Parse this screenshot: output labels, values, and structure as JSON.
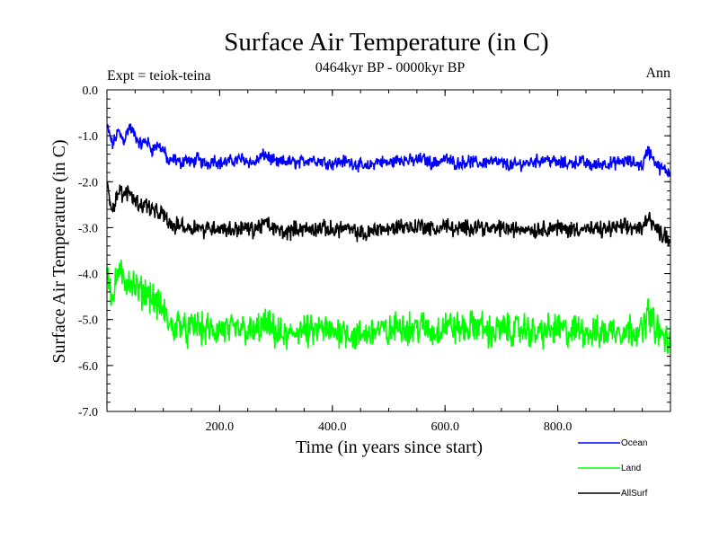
{
  "chart_data": {
    "type": "line",
    "title": "Surface Air Temperature (in C)",
    "subtitle": "0464kyr BP - 0000kyr BP",
    "left_label": "Expt = teiok-teina",
    "right_label": "Ann",
    "xlabel": "Time (in years since start)",
    "ylabel": "Surface Air Temperature (in C)",
    "xlim": [
      0,
      1000
    ],
    "ylim": [
      -7.0,
      0.0
    ],
    "xticks": [
      200,
      400,
      600,
      800
    ],
    "xtick_labels": [
      "200.0",
      "400.0",
      "600.0",
      "800.0"
    ],
    "yticks": [
      0,
      -1,
      -2,
      -3,
      -4,
      -5,
      -6,
      -7
    ],
    "ytick_labels": [
      "0.0",
      "-1.0",
      "-2.0",
      "-3.0",
      "-4.0",
      "-5.0",
      "-6.0",
      "-7.0"
    ],
    "grid": false,
    "legend_position": "bottom-right",
    "series": [
      {
        "name": "Ocean",
        "color": "#0000ff",
        "x": [
          0,
          10,
          20,
          30,
          40,
          50,
          60,
          70,
          80,
          90,
          100,
          110,
          120,
          130,
          140,
          150,
          160,
          170,
          180,
          190,
          200,
          220,
          240,
          260,
          280,
          300,
          320,
          340,
          360,
          380,
          400,
          420,
          440,
          460,
          480,
          500,
          520,
          540,
          560,
          580,
          600,
          620,
          640,
          660,
          680,
          700,
          720,
          740,
          760,
          780,
          800,
          820,
          840,
          860,
          880,
          900,
          920,
          940,
          950,
          960,
          970,
          980,
          990,
          1000
        ],
        "y": [
          -0.8,
          -1.2,
          -0.9,
          -1.1,
          -0.8,
          -1.0,
          -1.2,
          -1.1,
          -1.3,
          -1.2,
          -1.3,
          -1.6,
          -1.5,
          -1.6,
          -1.5,
          -1.6,
          -1.5,
          -1.6,
          -1.6,
          -1.5,
          -1.6,
          -1.55,
          -1.5,
          -1.6,
          -1.4,
          -1.6,
          -1.55,
          -1.6,
          -1.5,
          -1.55,
          -1.6,
          -1.55,
          -1.6,
          -1.7,
          -1.55,
          -1.6,
          -1.5,
          -1.55,
          -1.5,
          -1.6,
          -1.5,
          -1.6,
          -1.55,
          -1.6,
          -1.55,
          -1.6,
          -1.65,
          -1.6,
          -1.55,
          -1.5,
          -1.6,
          -1.6,
          -1.55,
          -1.65,
          -1.6,
          -1.6,
          -1.55,
          -1.6,
          -1.65,
          -1.3,
          -1.5,
          -1.7,
          -1.75,
          -1.8
        ]
      },
      {
        "name": "Land",
        "color": "#00ff00",
        "x": [
          0,
          10,
          20,
          30,
          40,
          50,
          60,
          70,
          80,
          90,
          100,
          110,
          120,
          130,
          140,
          150,
          160,
          170,
          180,
          190,
          200,
          220,
          240,
          260,
          280,
          300,
          320,
          340,
          360,
          380,
          400,
          420,
          440,
          460,
          480,
          500,
          520,
          540,
          560,
          580,
          600,
          620,
          640,
          660,
          680,
          700,
          720,
          740,
          760,
          780,
          800,
          820,
          840,
          860,
          880,
          900,
          920,
          940,
          950,
          960,
          970,
          980,
          990,
          1000
        ],
        "y": [
          -3.8,
          -4.6,
          -3.9,
          -4.2,
          -4.1,
          -4.3,
          -4.4,
          -4.4,
          -4.5,
          -4.7,
          -4.8,
          -5.1,
          -5.2,
          -5.0,
          -5.3,
          -5.2,
          -5.1,
          -5.25,
          -5.2,
          -5.3,
          -5.2,
          -5.25,
          -5.2,
          -5.3,
          -5.1,
          -5.3,
          -5.4,
          -5.2,
          -5.3,
          -5.2,
          -5.3,
          -5.2,
          -5.4,
          -5.3,
          -5.2,
          -5.3,
          -5.1,
          -5.2,
          -5.15,
          -5.3,
          -5.1,
          -5.2,
          -5.2,
          -5.1,
          -5.3,
          -5.2,
          -5.25,
          -5.2,
          -5.3,
          -5.25,
          -5.2,
          -5.3,
          -5.2,
          -5.3,
          -5.3,
          -5.2,
          -5.25,
          -5.2,
          -5.3,
          -4.8,
          -5.1,
          -5.3,
          -5.4,
          -5.6
        ]
      },
      {
        "name": "AllSurf",
        "color": "#000000",
        "x": [
          0,
          10,
          20,
          30,
          40,
          50,
          60,
          70,
          80,
          90,
          100,
          110,
          120,
          130,
          140,
          150,
          160,
          170,
          180,
          190,
          200,
          220,
          240,
          260,
          280,
          300,
          320,
          340,
          360,
          380,
          400,
          420,
          440,
          460,
          480,
          500,
          520,
          540,
          560,
          580,
          600,
          620,
          640,
          660,
          680,
          700,
          720,
          740,
          760,
          780,
          800,
          820,
          840,
          860,
          880,
          900,
          920,
          940,
          950,
          960,
          970,
          980,
          990,
          1000
        ],
        "y": [
          -2.1,
          -2.6,
          -2.2,
          -2.3,
          -2.2,
          -2.4,
          -2.5,
          -2.5,
          -2.6,
          -2.7,
          -2.7,
          -2.9,
          -3.0,
          -2.9,
          -3.0,
          -3.0,
          -2.95,
          -3.05,
          -3.0,
          -3.0,
          -3.0,
          -3.05,
          -3.0,
          -3.05,
          -2.9,
          -3.05,
          -3.1,
          -3.0,
          -3.05,
          -3.0,
          -3.05,
          -3.0,
          -3.1,
          -3.15,
          -3.0,
          -3.05,
          -2.95,
          -3.0,
          -2.95,
          -3.05,
          -2.95,
          -3.05,
          -3.0,
          -2.95,
          -3.05,
          -3.0,
          -3.05,
          -3.0,
          -3.05,
          -3.0,
          -3.0,
          -3.05,
          -3.0,
          -3.05,
          -3.05,
          -3.0,
          -3.0,
          -3.0,
          -3.05,
          -2.7,
          -2.95,
          -3.1,
          -3.15,
          -3.3
        ]
      }
    ]
  }
}
